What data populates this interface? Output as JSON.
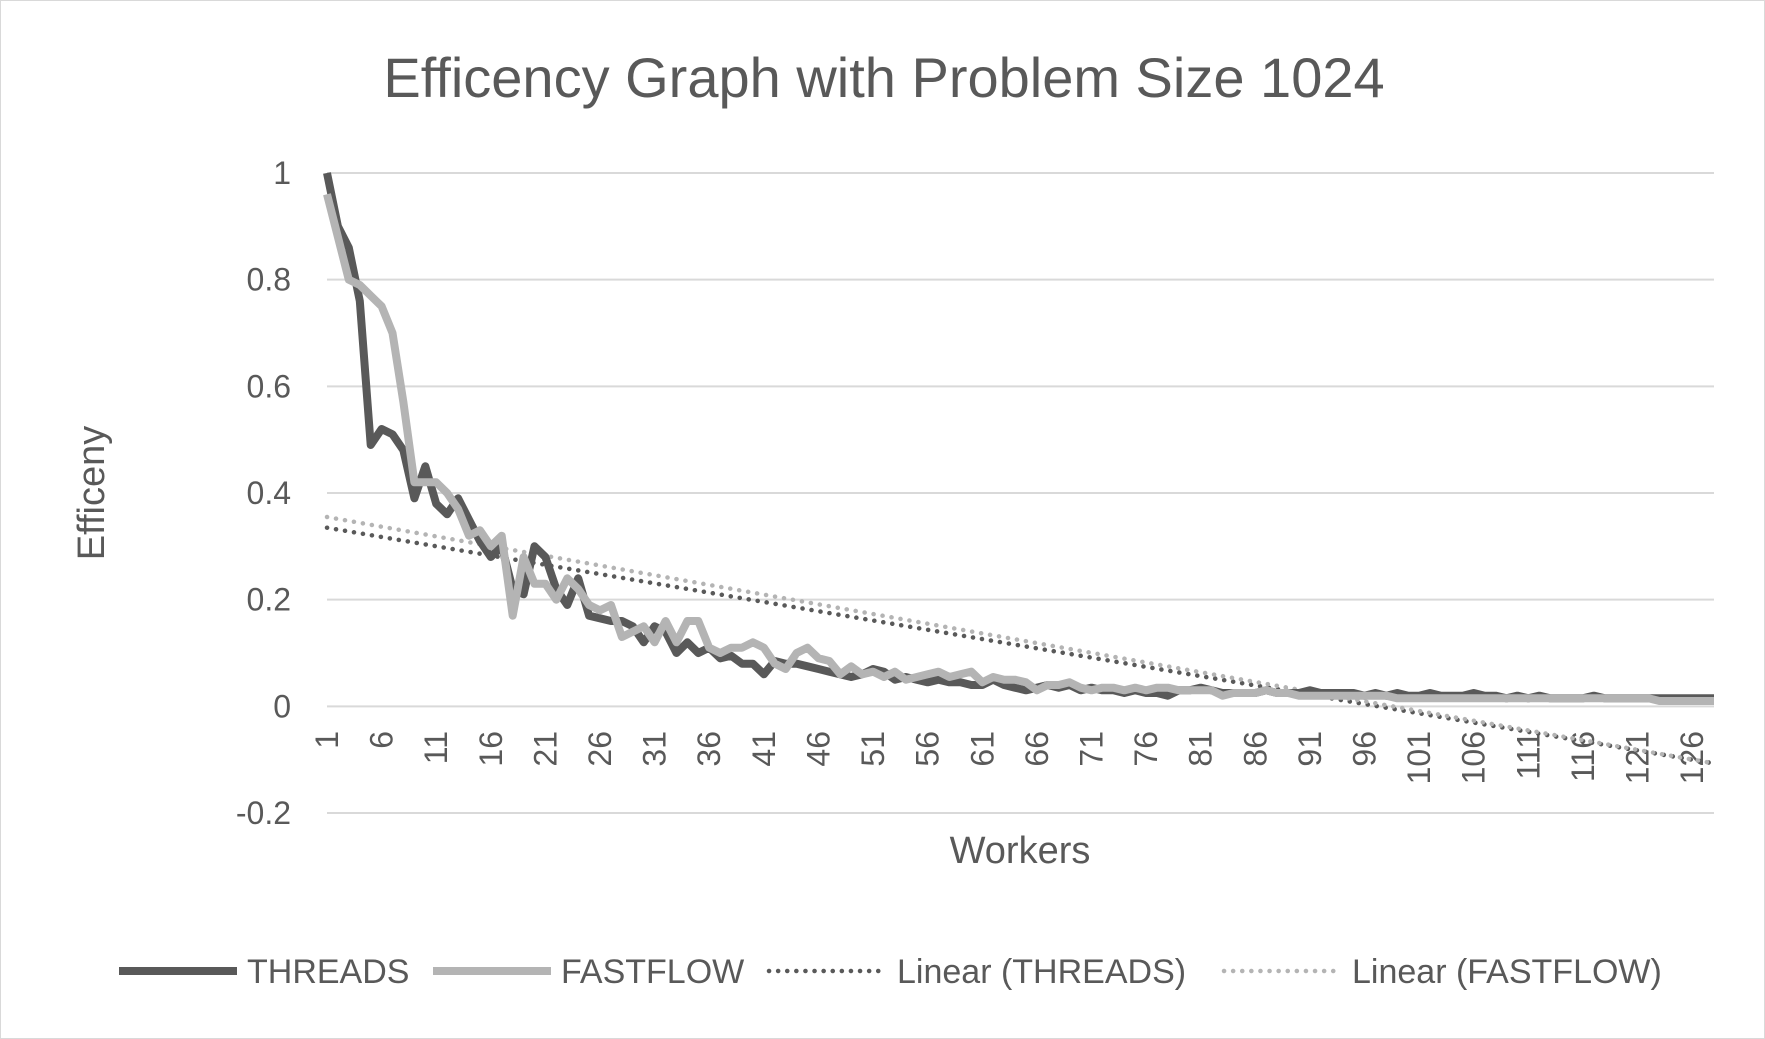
{
  "chart_data": {
    "type": "line",
    "title": "Efficency Graph with Problem Size 1024",
    "xlabel": "Workers",
    "ylabel": "Efficeny",
    "ylim": [
      -0.2,
      1
    ],
    "yticks": [
      -0.2,
      0,
      0.2,
      0.4,
      0.6,
      0.8,
      1
    ],
    "ytick_labels": [
      "-0.2",
      "0",
      "0.2",
      "0.4",
      "0.6",
      "0.8",
      "1"
    ],
    "xlim": [
      1,
      128
    ],
    "xtick_labels": [
      "1",
      "6",
      "11",
      "16",
      "21",
      "26",
      "31",
      "36",
      "41",
      "46",
      "51",
      "56",
      "61",
      "66",
      "71",
      "76",
      "81",
      "86",
      "91",
      "96",
      "101",
      "106",
      "111",
      "116",
      "121",
      "126"
    ],
    "grid": true,
    "legend_position": "bottom",
    "series": [
      {
        "name": "THREADS",
        "color": "#595959",
        "style": "solid",
        "points": [
          [
            1,
            1.0
          ],
          [
            2,
            0.9
          ],
          [
            3,
            0.86
          ],
          [
            4,
            0.76
          ],
          [
            5,
            0.49
          ],
          [
            6,
            0.52
          ],
          [
            7,
            0.51
          ],
          [
            8,
            0.48
          ],
          [
            9,
            0.39
          ],
          [
            10,
            0.45
          ],
          [
            11,
            0.38
          ],
          [
            12,
            0.36
          ],
          [
            13,
            0.39
          ],
          [
            14,
            0.35
          ],
          [
            15,
            0.31
          ],
          [
            16,
            0.28
          ],
          [
            17,
            0.3
          ],
          [
            18,
            0.22
          ],
          [
            19,
            0.21
          ],
          [
            20,
            0.3
          ],
          [
            21,
            0.28
          ],
          [
            22,
            0.22
          ],
          [
            23,
            0.19
          ],
          [
            24,
            0.24
          ],
          [
            25,
            0.17
          ],
          [
            26,
            0.165
          ],
          [
            27,
            0.16
          ],
          [
            28,
            0.16
          ],
          [
            29,
            0.15
          ],
          [
            30,
            0.12
          ],
          [
            31,
            0.15
          ],
          [
            32,
            0.14
          ],
          [
            33,
            0.1
          ],
          [
            34,
            0.12
          ],
          [
            35,
            0.1
          ],
          [
            36,
            0.11
          ],
          [
            37,
            0.09
          ],
          [
            38,
            0.095
          ],
          [
            39,
            0.08
          ],
          [
            40,
            0.08
          ],
          [
            41,
            0.06
          ],
          [
            42,
            0.085
          ],
          [
            43,
            0.08
          ],
          [
            44,
            0.08
          ],
          [
            45,
            0.075
          ],
          [
            46,
            0.07
          ],
          [
            47,
            0.065
          ],
          [
            48,
            0.06
          ],
          [
            49,
            0.055
          ],
          [
            50,
            0.06
          ],
          [
            51,
            0.07
          ],
          [
            52,
            0.065
          ],
          [
            53,
            0.05
          ],
          [
            54,
            0.055
          ],
          [
            55,
            0.05
          ],
          [
            56,
            0.045
          ],
          [
            57,
            0.05
          ],
          [
            58,
            0.045
          ],
          [
            59,
            0.045
          ],
          [
            60,
            0.04
          ],
          [
            61,
            0.04
          ],
          [
            62,
            0.05
          ],
          [
            63,
            0.04
          ],
          [
            64,
            0.035
          ],
          [
            65,
            0.03
          ],
          [
            66,
            0.035
          ],
          [
            67,
            0.04
          ],
          [
            68,
            0.035
          ],
          [
            69,
            0.04
          ],
          [
            70,
            0.03
          ],
          [
            71,
            0.035
          ],
          [
            72,
            0.03
          ],
          [
            73,
            0.03
          ],
          [
            74,
            0.025
          ],
          [
            75,
            0.03
          ],
          [
            76,
            0.025
          ],
          [
            77,
            0.025
          ],
          [
            78,
            0.02
          ],
          [
            79,
            0.03
          ],
          [
            80,
            0.03
          ],
          [
            81,
            0.035
          ],
          [
            82,
            0.03
          ],
          [
            83,
            0.025
          ],
          [
            84,
            0.025
          ],
          [
            85,
            0.025
          ],
          [
            86,
            0.025
          ],
          [
            87,
            0.03
          ],
          [
            88,
            0.025
          ],
          [
            89,
            0.025
          ],
          [
            90,
            0.025
          ],
          [
            91,
            0.03
          ],
          [
            92,
            0.025
          ],
          [
            93,
            0.025
          ],
          [
            94,
            0.025
          ],
          [
            95,
            0.025
          ],
          [
            96,
            0.02
          ],
          [
            97,
            0.025
          ],
          [
            98,
            0.02
          ],
          [
            99,
            0.025
          ],
          [
            100,
            0.02
          ],
          [
            101,
            0.02
          ],
          [
            102,
            0.025
          ],
          [
            103,
            0.02
          ],
          [
            104,
            0.02
          ],
          [
            105,
            0.02
          ],
          [
            106,
            0.025
          ],
          [
            107,
            0.02
          ],
          [
            108,
            0.02
          ],
          [
            109,
            0.015
          ],
          [
            110,
            0.02
          ],
          [
            111,
            0.015
          ],
          [
            112,
            0.02
          ],
          [
            113,
            0.015
          ],
          [
            114,
            0.015
          ],
          [
            115,
            0.015
          ],
          [
            116,
            0.015
          ],
          [
            117,
            0.02
          ],
          [
            118,
            0.015
          ],
          [
            119,
            0.015
          ],
          [
            120,
            0.015
          ],
          [
            121,
            0.015
          ],
          [
            122,
            0.015
          ],
          [
            123,
            0.015
          ],
          [
            124,
            0.015
          ],
          [
            125,
            0.015
          ],
          [
            126,
            0.015
          ],
          [
            127,
            0.015
          ],
          [
            128,
            0.015
          ]
        ]
      },
      {
        "name": "FASTFLOW",
        "color": "#b4b4b4",
        "style": "solid",
        "points": [
          [
            1,
            0.96
          ],
          [
            2,
            0.88
          ],
          [
            3,
            0.8
          ],
          [
            4,
            0.79
          ],
          [
            5,
            0.77
          ],
          [
            6,
            0.75
          ],
          [
            7,
            0.7
          ],
          [
            8,
            0.57
          ],
          [
            9,
            0.42
          ],
          [
            10,
            0.42
          ],
          [
            11,
            0.42
          ],
          [
            12,
            0.4
          ],
          [
            13,
            0.37
          ],
          [
            14,
            0.32
          ],
          [
            15,
            0.33
          ],
          [
            16,
            0.3
          ],
          [
            17,
            0.32
          ],
          [
            18,
            0.17
          ],
          [
            19,
            0.28
          ],
          [
            20,
            0.23
          ],
          [
            21,
            0.23
          ],
          [
            22,
            0.2
          ],
          [
            23,
            0.24
          ],
          [
            24,
            0.22
          ],
          [
            25,
            0.19
          ],
          [
            26,
            0.18
          ],
          [
            27,
            0.19
          ],
          [
            28,
            0.13
          ],
          [
            29,
            0.14
          ],
          [
            30,
            0.15
          ],
          [
            31,
            0.12
          ],
          [
            32,
            0.16
          ],
          [
            33,
            0.12
          ],
          [
            34,
            0.16
          ],
          [
            35,
            0.16
          ],
          [
            36,
            0.11
          ],
          [
            37,
            0.1
          ],
          [
            38,
            0.11
          ],
          [
            39,
            0.11
          ],
          [
            40,
            0.12
          ],
          [
            41,
            0.11
          ],
          [
            42,
            0.08
          ],
          [
            43,
            0.07
          ],
          [
            44,
            0.1
          ],
          [
            45,
            0.11
          ],
          [
            46,
            0.09
          ],
          [
            47,
            0.085
          ],
          [
            48,
            0.06
          ],
          [
            49,
            0.075
          ],
          [
            50,
            0.06
          ],
          [
            51,
            0.065
          ],
          [
            52,
            0.055
          ],
          [
            53,
            0.065
          ],
          [
            54,
            0.05
          ],
          [
            55,
            0.055
          ],
          [
            56,
            0.06
          ],
          [
            57,
            0.065
          ],
          [
            58,
            0.055
          ],
          [
            59,
            0.06
          ],
          [
            60,
            0.065
          ],
          [
            61,
            0.045
          ],
          [
            62,
            0.055
          ],
          [
            63,
            0.05
          ],
          [
            64,
            0.05
          ],
          [
            65,
            0.045
          ],
          [
            66,
            0.03
          ],
          [
            67,
            0.04
          ],
          [
            68,
            0.04
          ],
          [
            69,
            0.045
          ],
          [
            70,
            0.035
          ],
          [
            71,
            0.03
          ],
          [
            72,
            0.035
          ],
          [
            73,
            0.035
          ],
          [
            74,
            0.03
          ],
          [
            75,
            0.035
          ],
          [
            76,
            0.03
          ],
          [
            77,
            0.035
          ],
          [
            78,
            0.035
          ],
          [
            79,
            0.03
          ],
          [
            80,
            0.03
          ],
          [
            81,
            0.03
          ],
          [
            82,
            0.03
          ],
          [
            83,
            0.02
          ],
          [
            84,
            0.025
          ],
          [
            85,
            0.025
          ],
          [
            86,
            0.025
          ],
          [
            87,
            0.03
          ],
          [
            88,
            0.025
          ],
          [
            89,
            0.025
          ],
          [
            90,
            0.02
          ],
          [
            91,
            0.02
          ],
          [
            92,
            0.02
          ],
          [
            93,
            0.02
          ],
          [
            94,
            0.02
          ],
          [
            95,
            0.02
          ],
          [
            96,
            0.02
          ],
          [
            97,
            0.02
          ],
          [
            98,
            0.02
          ],
          [
            99,
            0.015
          ],
          [
            100,
            0.015
          ],
          [
            101,
            0.015
          ],
          [
            102,
            0.015
          ],
          [
            103,
            0.015
          ],
          [
            104,
            0.015
          ],
          [
            105,
            0.015
          ],
          [
            106,
            0.015
          ],
          [
            107,
            0.015
          ],
          [
            108,
            0.015
          ],
          [
            109,
            0.015
          ],
          [
            110,
            0.015
          ],
          [
            111,
            0.015
          ],
          [
            112,
            0.015
          ],
          [
            113,
            0.015
          ],
          [
            114,
            0.015
          ],
          [
            115,
            0.015
          ],
          [
            116,
            0.015
          ],
          [
            117,
            0.015
          ],
          [
            118,
            0.015
          ],
          [
            119,
            0.015
          ],
          [
            120,
            0.015
          ],
          [
            121,
            0.015
          ],
          [
            122,
            0.015
          ],
          [
            123,
            0.01
          ],
          [
            124,
            0.01
          ],
          [
            125,
            0.01
          ],
          [
            126,
            0.01
          ],
          [
            127,
            0.01
          ],
          [
            128,
            0.01
          ]
        ]
      },
      {
        "name": "Linear (THREADS)",
        "color": "#595959",
        "style": "dotted",
        "points": [
          [
            1,
            0.335
          ],
          [
            128,
            -0.107
          ]
        ]
      },
      {
        "name": "Linear (FASTFLOW)",
        "color": "#b4b4b4",
        "style": "dotted",
        "points": [
          [
            1,
            0.355
          ],
          [
            128,
            -0.107
          ]
        ]
      }
    ]
  }
}
